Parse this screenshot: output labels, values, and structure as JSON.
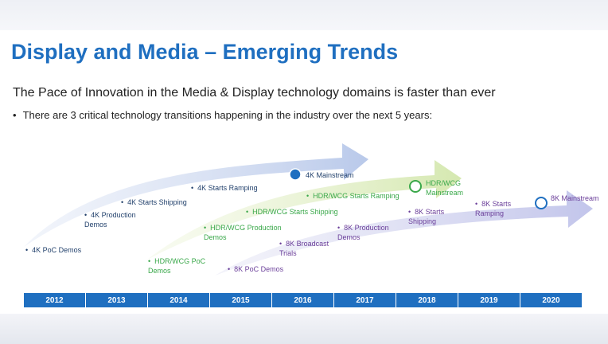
{
  "title": "Display and Media – Emerging Trends",
  "subtitle": "The Pace of Innovation in the Media & Display technology domains is faster than ever",
  "bullet": "There are 3 critical technology transitions happening in the industry over the next 5 years:",
  "tracks": {
    "k4": {
      "color": "#22416c",
      "labels": [
        "4K PoC Demos",
        "4K Production Demos",
        "4K Starts Shipping",
        "4K Starts Ramping",
        "4K Mainstream"
      ]
    },
    "hdr": {
      "color": "#3aa84a",
      "labels": [
        "HDR/WCG PoC Demos",
        "HDR/WCG Production Demos",
        "HDR/WCG Starts Shipping",
        "HDR/WCG Starts Ramping",
        "HDR/WCG Mainstream"
      ]
    },
    "k8": {
      "color": "#6b3f9a",
      "labels": [
        "8K PoC Demos",
        "8K Broadcast Trials",
        "8K Production Demos",
        "8K Starts Shipping",
        "8K Starts Ramping",
        "8K Mainstream"
      ]
    }
  },
  "years": [
    "2012",
    "2013",
    "2014",
    "2015",
    "2016",
    "2017",
    "2018",
    "2019",
    "2020"
  ],
  "colors": {
    "accent": "#1f6fc0"
  }
}
